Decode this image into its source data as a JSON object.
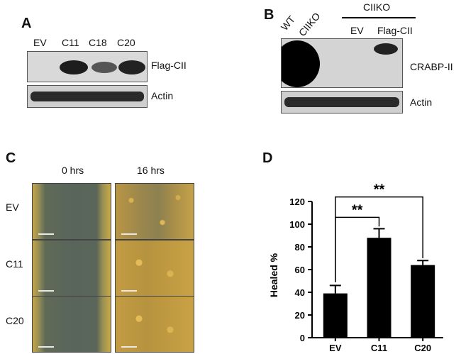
{
  "panels": {
    "a": {
      "letter": "A",
      "lanes": [
        "EV",
        "C11",
        "C18",
        "C20"
      ],
      "rows": [
        "Flag-CII",
        "Actin"
      ]
    },
    "b": {
      "letter": "B",
      "lanes": [
        "WT",
        "CIIKO",
        "EV",
        "Flag-CII"
      ],
      "group_label": "CIIKO",
      "rows": [
        "CRABP-II",
        "Actin"
      ]
    },
    "c": {
      "letter": "C",
      "time_labels": [
        "0 hrs",
        "16 hrs"
      ],
      "rows": [
        "EV",
        "C11",
        "C20"
      ]
    },
    "d": {
      "letter": "D"
    }
  },
  "chart_data": {
    "type": "bar",
    "categories": [
      "EV",
      "C11",
      "C20"
    ],
    "values": [
      39,
      88,
      64
    ],
    "errors": [
      7,
      8,
      4
    ],
    "ylabel": "Healed %",
    "xlabel": "",
    "ylim": [
      0,
      120
    ],
    "yticks": [
      0,
      20,
      40,
      60,
      80,
      100,
      120
    ],
    "significance": [
      {
        "from": "EV",
        "to": "C11",
        "label": "**"
      },
      {
        "from": "EV",
        "to": "C20",
        "label": "**"
      }
    ],
    "bar_color": "#000000"
  }
}
